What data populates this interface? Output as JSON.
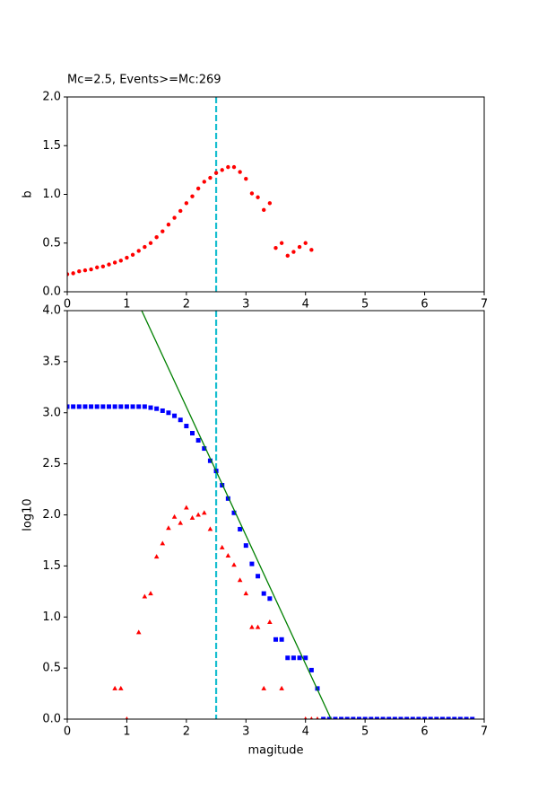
{
  "chart_data": [
    {
      "type": "scatter",
      "title": "Mc=2.5, Events>=Mc:269",
      "y_label": "b",
      "xlim": [
        0,
        7
      ],
      "ylim": [
        0,
        2
      ],
      "xticks": [
        0,
        1,
        2,
        3,
        4,
        5,
        6,
        7
      ],
      "yticks": [
        {
          "value": 0,
          "label": "0.0"
        },
        {
          "value": 0.5,
          "label": "0.5"
        },
        {
          "value": 1,
          "label": "1.0"
        },
        {
          "value": 1.5,
          "label": "1.5"
        },
        {
          "value": 2,
          "label": "2.0"
        }
      ],
      "vlines": [
        2.5
      ],
      "vline_color": "#17becf",
      "series": [
        {
          "color": "#ff0000",
          "marker": "o",
          "x": [
            0,
            0.1,
            0.2,
            0.3,
            0.4,
            0.5,
            0.6,
            0.7,
            0.8,
            0.9,
            1,
            1.1,
            1.2,
            1.3,
            1.4,
            1.5,
            1.6,
            1.7,
            1.8,
            1.9,
            2,
            2.1,
            2.2,
            2.3,
            2.4,
            2.5,
            2.6,
            2.7,
            2.8,
            2.9,
            3,
            3.1,
            3.2,
            3.3,
            3.4,
            3.5,
            3.6,
            3.7,
            3.8,
            3.9,
            4,
            4.1
          ],
          "values": [
            0.18,
            0.19,
            0.21,
            0.22,
            0.23,
            0.25,
            0.26,
            0.28,
            0.3,
            0.32,
            0.35,
            0.38,
            0.42,
            0.46,
            0.5,
            0.56,
            0.62,
            0.69,
            0.76,
            0.83,
            0.91,
            0.98,
            1.06,
            1.13,
            1.17,
            1.22,
            1.25,
            1.28,
            1.28,
            1.23,
            1.16,
            1.01,
            0.97,
            0.84,
            0.91,
            0.45,
            0.5,
            0.37,
            0.41,
            0.46,
            0.5,
            0.43
          ]
        }
      ]
    },
    {
      "type": "scatter",
      "x_label": "magitude",
      "y_label": "log10",
      "xlim": [
        0,
        7
      ],
      "ylim": [
        0,
        4
      ],
      "xticks": [
        0,
        1,
        2,
        3,
        4,
        5,
        6,
        7
      ],
      "yticks": [
        {
          "value": 0,
          "label": "0.0"
        },
        {
          "value": 0.5,
          "label": "0.5"
        },
        {
          "value": 1,
          "label": "1.0"
        },
        {
          "value": 1.5,
          "label": "1.5"
        },
        {
          "value": 2,
          "label": "2.0"
        },
        {
          "value": 2.5,
          "label": "2.5"
        },
        {
          "value": 3,
          "label": "3.0"
        },
        {
          "value": 3.5,
          "label": "3.5"
        },
        {
          "value": 4,
          "label": "4.0"
        }
      ],
      "vlines": [
        2.5
      ],
      "vline_color": "#17becf",
      "series": [
        {
          "color": "#0000ff",
          "marker": "s",
          "x": [
            0,
            0.1,
            0.2,
            0.3,
            0.4,
            0.5,
            0.6,
            0.7,
            0.8,
            0.9,
            1,
            1.1,
            1.2,
            1.3,
            1.4,
            1.5,
            1.6,
            1.7,
            1.8,
            1.9,
            2,
            2.1,
            2.2,
            2.3,
            2.4,
            2.5,
            2.6,
            2.7,
            2.8,
            2.9,
            3,
            3.1,
            3.2,
            3.3,
            3.4,
            3.5,
            3.6,
            3.7,
            3.8,
            3.9,
            4,
            4.1,
            4.2,
            4.3,
            4.4,
            4.5,
            4.6,
            4.7,
            4.8,
            4.9,
            5,
            5.1,
            5.2,
            5.3,
            5.4,
            5.5,
            5.6,
            5.7,
            5.8,
            5.9,
            6,
            6.1,
            6.2,
            6.3,
            6.4,
            6.5,
            6.6,
            6.7,
            6.8
          ],
          "values": [
            3.06,
            3.06,
            3.06,
            3.06,
            3.06,
            3.06,
            3.06,
            3.06,
            3.06,
            3.06,
            3.06,
            3.06,
            3.06,
            3.06,
            3.05,
            3.04,
            3.02,
            3.0,
            2.97,
            2.93,
            2.87,
            2.8,
            2.73,
            2.65,
            2.53,
            2.43,
            2.29,
            2.16,
            2.02,
            1.86,
            1.7,
            1.52,
            1.4,
            1.23,
            1.18,
            0.78,
            0.78,
            0.6,
            0.6,
            0.6,
            0.6,
            0.48,
            0.3,
            0,
            0,
            0,
            0,
            0,
            0,
            0,
            0,
            0,
            0,
            0,
            0,
            0,
            0,
            0,
            0,
            0,
            0,
            0,
            0,
            0,
            0,
            0,
            0,
            0,
            0
          ]
        },
        {
          "color": "#ff0000",
          "marker": "^",
          "x": [
            0.8,
            0.9,
            1,
            1.2,
            1.3,
            1.4,
            1.5,
            1.6,
            1.7,
            1.8,
            1.9,
            2,
            2.1,
            2.2,
            2.3,
            2.4,
            2.6,
            2.7,
            2.8,
            2.9,
            3,
            3.1,
            3.2,
            3.3,
            3.4,
            3.6,
            4,
            4.1,
            4.2
          ],
          "values": [
            0.3,
            0.3,
            0,
            0.85,
            1.2,
            1.23,
            1.59,
            1.72,
            1.87,
            1.98,
            1.92,
            2.07,
            1.97,
            2.0,
            2.02,
            1.86,
            1.68,
            1.6,
            1.51,
            1.36,
            1.23,
            0.9,
            0.9,
            0.3,
            0.95,
            0.3,
            0,
            0,
            0
          ]
        },
        {
          "color": "#008000",
          "marker": "line",
          "x": [
            1.25,
            4.43
          ],
          "values": [
            4,
            0
          ]
        }
      ]
    }
  ]
}
